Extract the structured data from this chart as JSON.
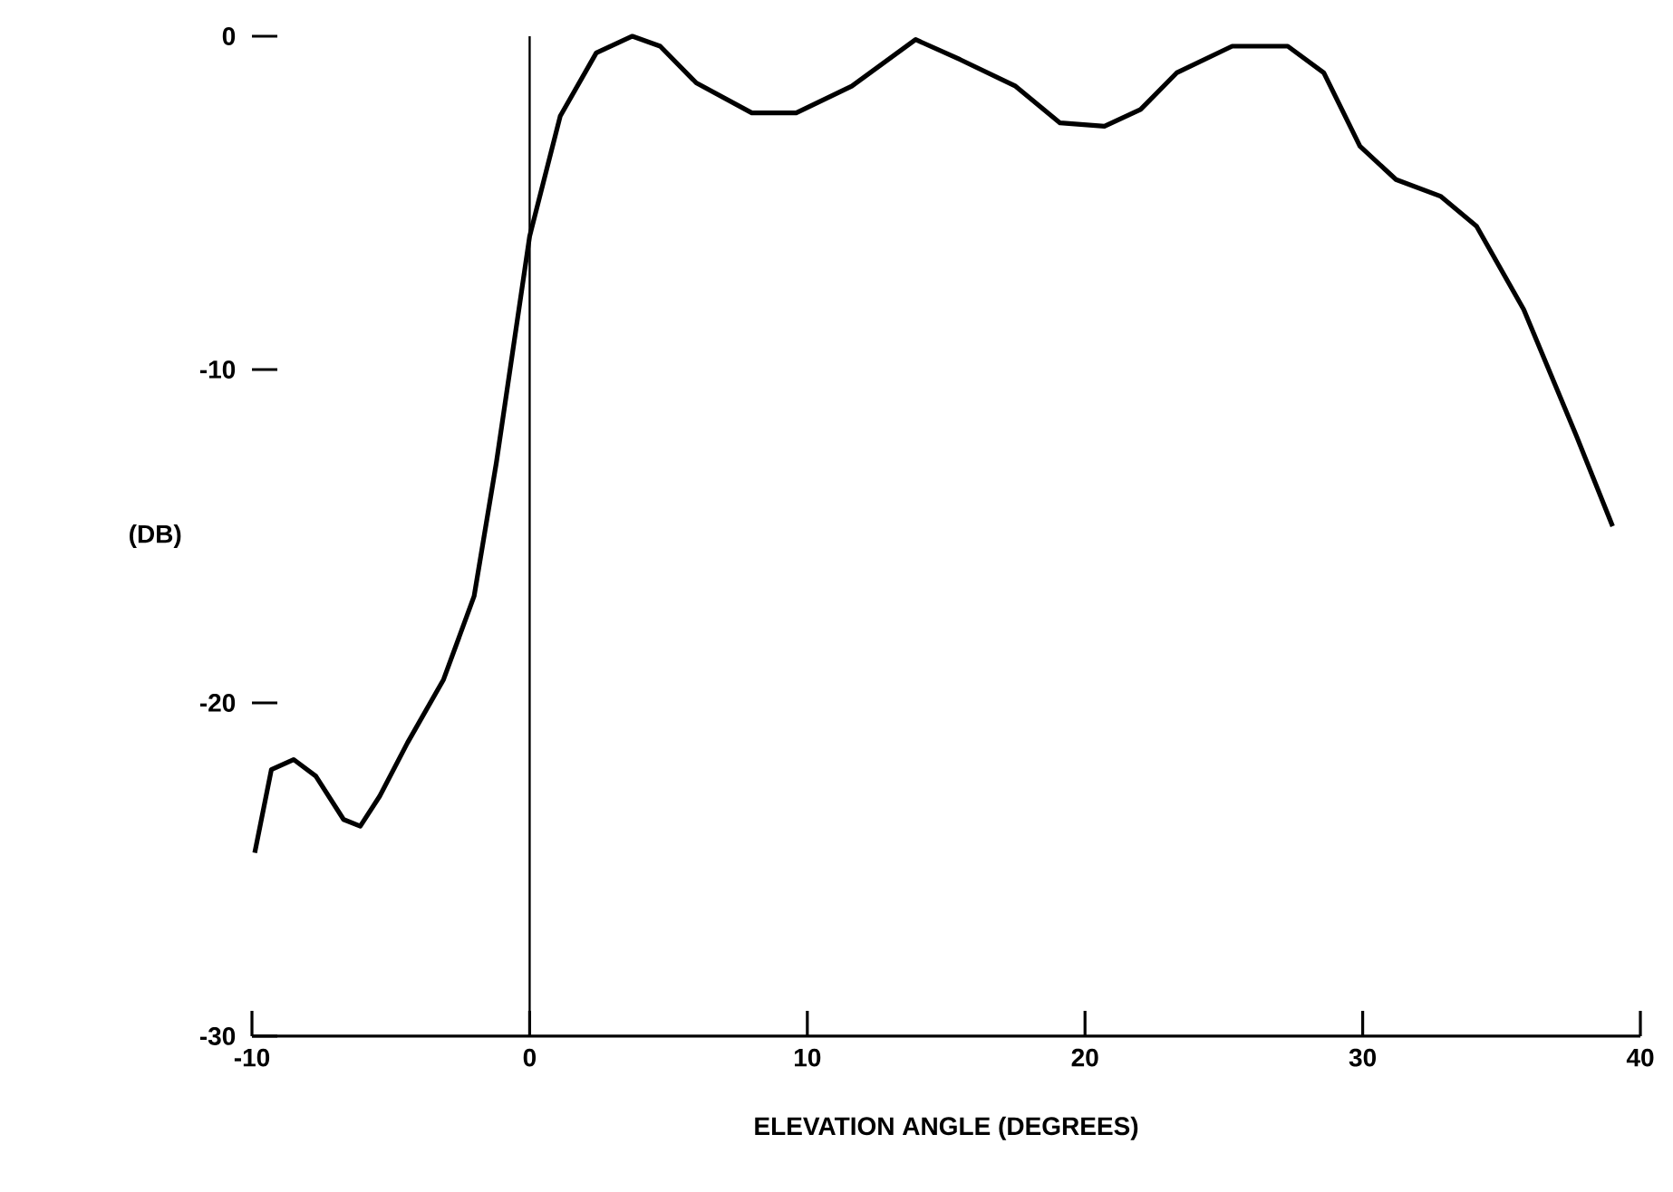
{
  "chart_data": {
    "type": "line",
    "xlabel": "ELEVATION ANGLE (DEGREES)",
    "ylabel": "(DB)",
    "xlim": [
      -10,
      40
    ],
    "ylim": [
      -30,
      0
    ],
    "xticks": [
      -10,
      0,
      10,
      20,
      30,
      40
    ],
    "yticks": [
      -30,
      -20,
      -10,
      0
    ],
    "ref_lines": [
      {
        "axis": "x",
        "value": 0
      }
    ],
    "series": [
      {
        "color": "#000000",
        "x": [
          -9.9,
          -9.3,
          -8.5,
          -7.7,
          -6.7,
          -6.1,
          -5.4,
          -4.4,
          -3.1,
          -2.0,
          -1.2,
          0,
          1.1,
          2.4,
          3.7,
          4.7,
          6.0,
          8.0,
          9.6,
          11.6,
          13.9,
          15.5,
          17.5,
          19.1,
          20.7,
          22.0,
          23.3,
          25.3,
          27.3,
          28.6,
          29.9,
          31.2,
          32.8,
          34.1,
          35.8,
          37.7,
          39.0
        ],
        "values": [
          -24.5,
          -22.0,
          -21.7,
          -22.2,
          -23.5,
          -23.7,
          -22.8,
          -21.2,
          -19.3,
          -16.8,
          -12.8,
          -6.0,
          -2.4,
          -0.5,
          0,
          -0.3,
          -1.4,
          -2.3,
          -2.3,
          -1.5,
          -0.1,
          -0.7,
          -1.5,
          -2.6,
          -2.7,
          -2.2,
          -1.1,
          -0.3,
          -0.3,
          -1.1,
          -3.3,
          -4.3,
          -4.8,
          -5.7,
          -8.2,
          -12.0,
          -14.7
        ]
      }
    ]
  }
}
